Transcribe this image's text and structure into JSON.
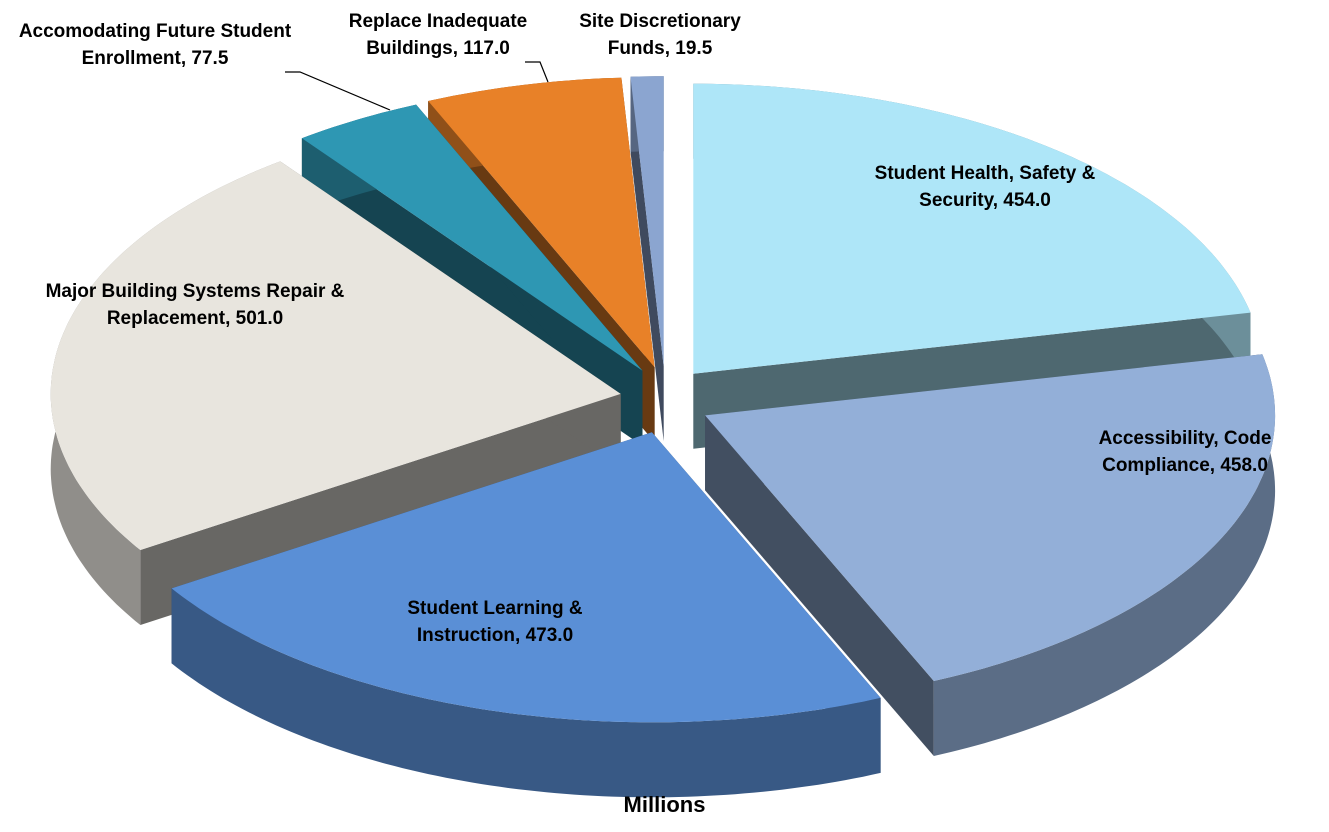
{
  "chart_data": {
    "type": "pie",
    "categories": [
      "Student Health, Safety & Security,",
      "Accessibility, Code Compliance,",
      "Student Learning & Instruction,",
      "Major Building Systems Repair & Replacement,",
      "Accomodating Future Student Enrollment,",
      "Replace Inadequate Buildings,",
      "Site Discretionary Funds,"
    ],
    "values": [
      454,
      458,
      473,
      501,
      77.5,
      117,
      19.5
    ],
    "value_labels": [
      "454.0",
      "458.0",
      "473.0",
      "501.0",
      "77.5",
      "117.0",
      "19.5"
    ],
    "colors": [
      "#aee6f8",
      "#93afd8",
      "#5a8fd6",
      "#e8e5de",
      "#2e97b3",
      "#e88128",
      "#8ba5d0"
    ],
    "x_label": "Millions"
  }
}
